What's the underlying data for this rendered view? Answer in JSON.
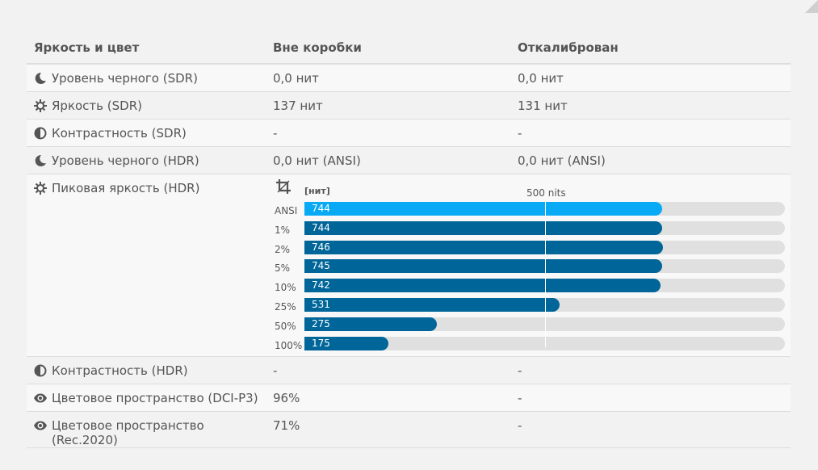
{
  "header": {
    "col1": "Яркость и цвет",
    "col2": "Вне коробки",
    "col3": "Откалиброван"
  },
  "rows": [
    {
      "icon": "moon-icon",
      "label": "Уровень черного (SDR)",
      "out": "0,0 нит",
      "cal": "0,0 нит"
    },
    {
      "icon": "sun-icon",
      "label": "Яркость (SDR)",
      "out": "137 нит",
      "cal": "131 нит"
    },
    {
      "icon": "contrast-icon",
      "label": "Контрастность (SDR)",
      "out": "-",
      "cal": "-"
    },
    {
      "icon": "moon-icon",
      "label": "Уровень черного (HDR)",
      "out": "0,0 нит (ANSI)",
      "cal": "0,0 нит (ANSI)"
    }
  ],
  "peak": {
    "icon": "sun-icon",
    "label": "Пиковая яркость (HDR)",
    "unit": "[нит]",
    "marker": "500 nits",
    "marker_value": 500,
    "max": 1000,
    "bars": [
      {
        "label": "ANSI",
        "value": 744,
        "color": "#09aaf5"
      },
      {
        "label": "1%",
        "value": 744,
        "color": "#006699"
      },
      {
        "label": "2%",
        "value": 746,
        "color": "#006699"
      },
      {
        "label": "5%",
        "value": 745,
        "color": "#006699"
      },
      {
        "label": "10%",
        "value": 742,
        "color": "#006699"
      },
      {
        "label": "25%",
        "value": 531,
        "color": "#006699"
      },
      {
        "label": "50%",
        "value": 275,
        "color": "#006699"
      },
      {
        "label": "100%",
        "value": 175,
        "color": "#006699"
      }
    ]
  },
  "rows2": [
    {
      "icon": "contrast-icon",
      "label": "Контрастность (HDR)",
      "out": "-",
      "cal": "-"
    },
    {
      "icon": "eye-icon",
      "label": "Цветовое пространство (DCI-P3)",
      "out": "96%",
      "cal": "-"
    },
    {
      "icon": "eye-icon",
      "label": "Цветовое пространство (Rec.2020)",
      "out": "71%",
      "cal": "-"
    }
  ]
}
